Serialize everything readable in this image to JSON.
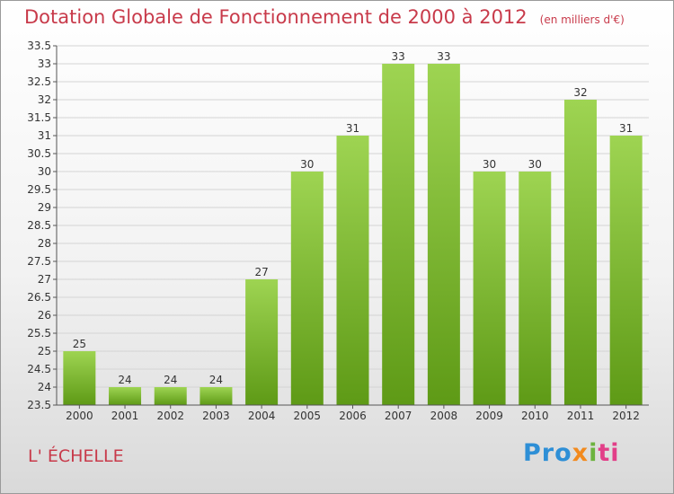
{
  "title": "Dotation Globale de Fonctionnement de 2000 à 2012",
  "unit_note": "(en milliers d'€)",
  "commune": "L' ÉCHELLE",
  "logo": {
    "parts": [
      "Pro",
      "x",
      "i",
      "ti"
    ]
  },
  "colors": {
    "bar_light": "#9ed452",
    "bar_dark": "#5e9a16",
    "title": "#c83a4a"
  },
  "chart_data": {
    "type": "bar",
    "title": "Dotation Globale de Fonctionnement de 2000 à 2012",
    "categories": [
      "2000",
      "2001",
      "2002",
      "2003",
      "2004",
      "2005",
      "2006",
      "2007",
      "2008",
      "2009",
      "2010",
      "2011",
      "2012"
    ],
    "values": [
      25,
      24,
      24,
      24,
      27,
      30,
      31,
      33,
      33,
      30,
      30,
      32,
      31
    ],
    "ylim": [
      23.5,
      33.5
    ],
    "ytick_step": 0.5,
    "ytick_labels": [
      "23.5",
      "24",
      "24.5",
      "25",
      "25.5",
      "26",
      "26.5",
      "27",
      "27.5",
      "28",
      "28.5",
      "29",
      "29.5",
      "30",
      "30.5",
      "31",
      "31.5",
      "32",
      "32.5",
      "33",
      "33.5"
    ],
    "grid": true,
    "xlabel": "",
    "ylabel": ""
  }
}
